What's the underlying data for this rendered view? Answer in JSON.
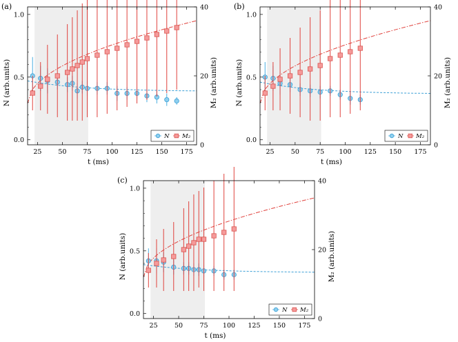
{
  "figure": {
    "shared": {
      "xlabel": "t (ms)",
      "ylabel_left": "N (arb.units)",
      "ylabel_right": "M₂ (arb.units)",
      "xticks": [
        25,
        50,
        75,
        100,
        125,
        150,
        175
      ],
      "left_yticks": [
        "0.0",
        "0.5",
        "1.0"
      ],
      "right_yticks": [
        "0",
        "20",
        "40"
      ],
      "legend": [
        "N",
        "M₂"
      ]
    },
    "colors": {
      "N_face": "#8ecfee",
      "N_edge": "#3a9fd6",
      "N_err": "#4aaee0",
      "M2_face": "#f59a9a",
      "M2_edge": "#d9534f",
      "M2_err": "#e0413c",
      "shade": "#eeeeee"
    }
  },
  "chart_data": [
    {
      "panel": "(a)",
      "type": "scatter",
      "xlabel": "t (ms)",
      "ylabel": "N (arb.units)",
      "y2label": "M₂ (arb.units)",
      "xlim": [
        15,
        185
      ],
      "ylim": [
        -0.04,
        1.06
      ],
      "y2lim": [
        0,
        40
      ],
      "shaded_region": [
        22,
        76
      ],
      "series": [
        {
          "name": "N",
          "axis": "left",
          "x": [
            20,
            28,
            35,
            45,
            55,
            60,
            65,
            70,
            75,
            85,
            95,
            105,
            115,
            125,
            135,
            145,
            155,
            165
          ],
          "y": [
            0.51,
            0.49,
            0.47,
            0.46,
            0.44,
            0.45,
            0.39,
            0.42,
            0.41,
            0.41,
            0.41,
            0.37,
            0.37,
            0.37,
            0.35,
            0.34,
            0.32,
            0.31
          ],
          "err": [
            0.15,
            0.1,
            0.1,
            0.06,
            0.06,
            0.06,
            0.06,
            0.05,
            0.06,
            0.05,
            0.05,
            0.06,
            0.05,
            0.05,
            0.05,
            0.05,
            0.05,
            0.03
          ]
        },
        {
          "name": "M₂",
          "axis": "right",
          "x": [
            20,
            28,
            35,
            45,
            55,
            60,
            65,
            70,
            75,
            85,
            95,
            105,
            115,
            125,
            135,
            145,
            155,
            165
          ],
          "y": [
            15,
            17,
            19,
            20,
            21,
            22,
            23,
            24,
            25,
            26,
            27,
            28,
            29,
            30,
            31,
            32,
            33,
            34
          ],
          "err": [
            5,
            7,
            10,
            12,
            14,
            15,
            16,
            17,
            17,
            18,
            18,
            18,
            18,
            18,
            18,
            18,
            18,
            18
          ]
        },
        {
          "name": "N fit",
          "axis": "left",
          "style": "dashed",
          "x": [
            15,
            185
          ],
          "y": [
            0.47,
            0.39
          ]
        },
        {
          "name": "M₂ fit",
          "axis": "right",
          "style": "dashdot",
          "x": [
            15,
            185
          ],
          "y": [
            12,
            36
          ]
        }
      ]
    },
    {
      "panel": "(b)",
      "type": "scatter",
      "xlabel": "t (ms)",
      "ylabel": "N (arb.units)",
      "y2label": "M₂ (arb.units)",
      "xlim": [
        15,
        185
      ],
      "ylim": [
        -0.04,
        1.06
      ],
      "y2lim": [
        0,
        40
      ],
      "shaded_region": [
        22,
        76
      ],
      "series": [
        {
          "name": "N",
          "axis": "left",
          "x": [
            20,
            28,
            35,
            45,
            55,
            65,
            75,
            85,
            95,
            105,
            115
          ],
          "y": [
            0.5,
            0.49,
            0.45,
            0.44,
            0.4,
            0.39,
            0.38,
            0.39,
            0.36,
            0.33,
            0.32
          ],
          "err": [
            0.12,
            0.1,
            0.09,
            0.06,
            0.05,
            0.05,
            0.05,
            0.04,
            0.04,
            0.05,
            0.04
          ]
        },
        {
          "name": "M₂",
          "axis": "right",
          "x": [
            20,
            28,
            35,
            45,
            55,
            65,
            75,
            85,
            95,
            105,
            115
          ],
          "y": [
            15,
            17,
            19,
            20,
            21,
            22,
            23,
            25,
            26,
            27,
            28
          ],
          "err": [
            5,
            7,
            9,
            11,
            13,
            15,
            16,
            17,
            18,
            18,
            18
          ]
        },
        {
          "name": "N fit",
          "axis": "left",
          "style": "dashed",
          "x": [
            15,
            185
          ],
          "y": [
            0.46,
            0.37
          ]
        },
        {
          "name": "M₂ fit",
          "axis": "right",
          "style": "dashdot",
          "x": [
            15,
            185
          ],
          "y": [
            12,
            36
          ]
        }
      ]
    },
    {
      "panel": "(c)",
      "type": "scatter",
      "xlabel": "t (ms)",
      "ylabel": "N (arb.units)",
      "y2label": "M₂ (arb.units)",
      "xlim": [
        15,
        185
      ],
      "ylim": [
        -0.04,
        1.06
      ],
      "y2lim": [
        0,
        40
      ],
      "shaded_region": [
        22,
        76
      ],
      "series": [
        {
          "name": "N",
          "axis": "left",
          "x": [
            20,
            28,
            35,
            45,
            55,
            60,
            65,
            70,
            75,
            85,
            95,
            105
          ],
          "y": [
            0.42,
            0.42,
            0.41,
            0.37,
            0.36,
            0.36,
            0.35,
            0.35,
            0.34,
            0.34,
            0.31,
            0.31
          ],
          "err": [
            0.1,
            0.1,
            0.08,
            0.06,
            0.05,
            0.05,
            0.05,
            0.05,
            0.05,
            0.04,
            0.04,
            0.04
          ]
        },
        {
          "name": "M₂",
          "axis": "right",
          "x": [
            20,
            28,
            35,
            45,
            55,
            60,
            65,
            70,
            75,
            85,
            95,
            105
          ],
          "y": [
            14,
            16,
            17,
            18,
            20,
            21,
            22,
            23,
            23,
            24,
            25,
            26
          ],
          "err": [
            5,
            7,
            9,
            10,
            12,
            13,
            14,
            14,
            15,
            16,
            17,
            18
          ]
        },
        {
          "name": "N fit",
          "axis": "left",
          "style": "dashed",
          "x": [
            15,
            185
          ],
          "y": [
            0.39,
            0.33
          ]
        },
        {
          "name": "M₂ fit",
          "axis": "right",
          "style": "dashdot",
          "x": [
            15,
            185
          ],
          "y": [
            12,
            35
          ]
        }
      ]
    }
  ]
}
